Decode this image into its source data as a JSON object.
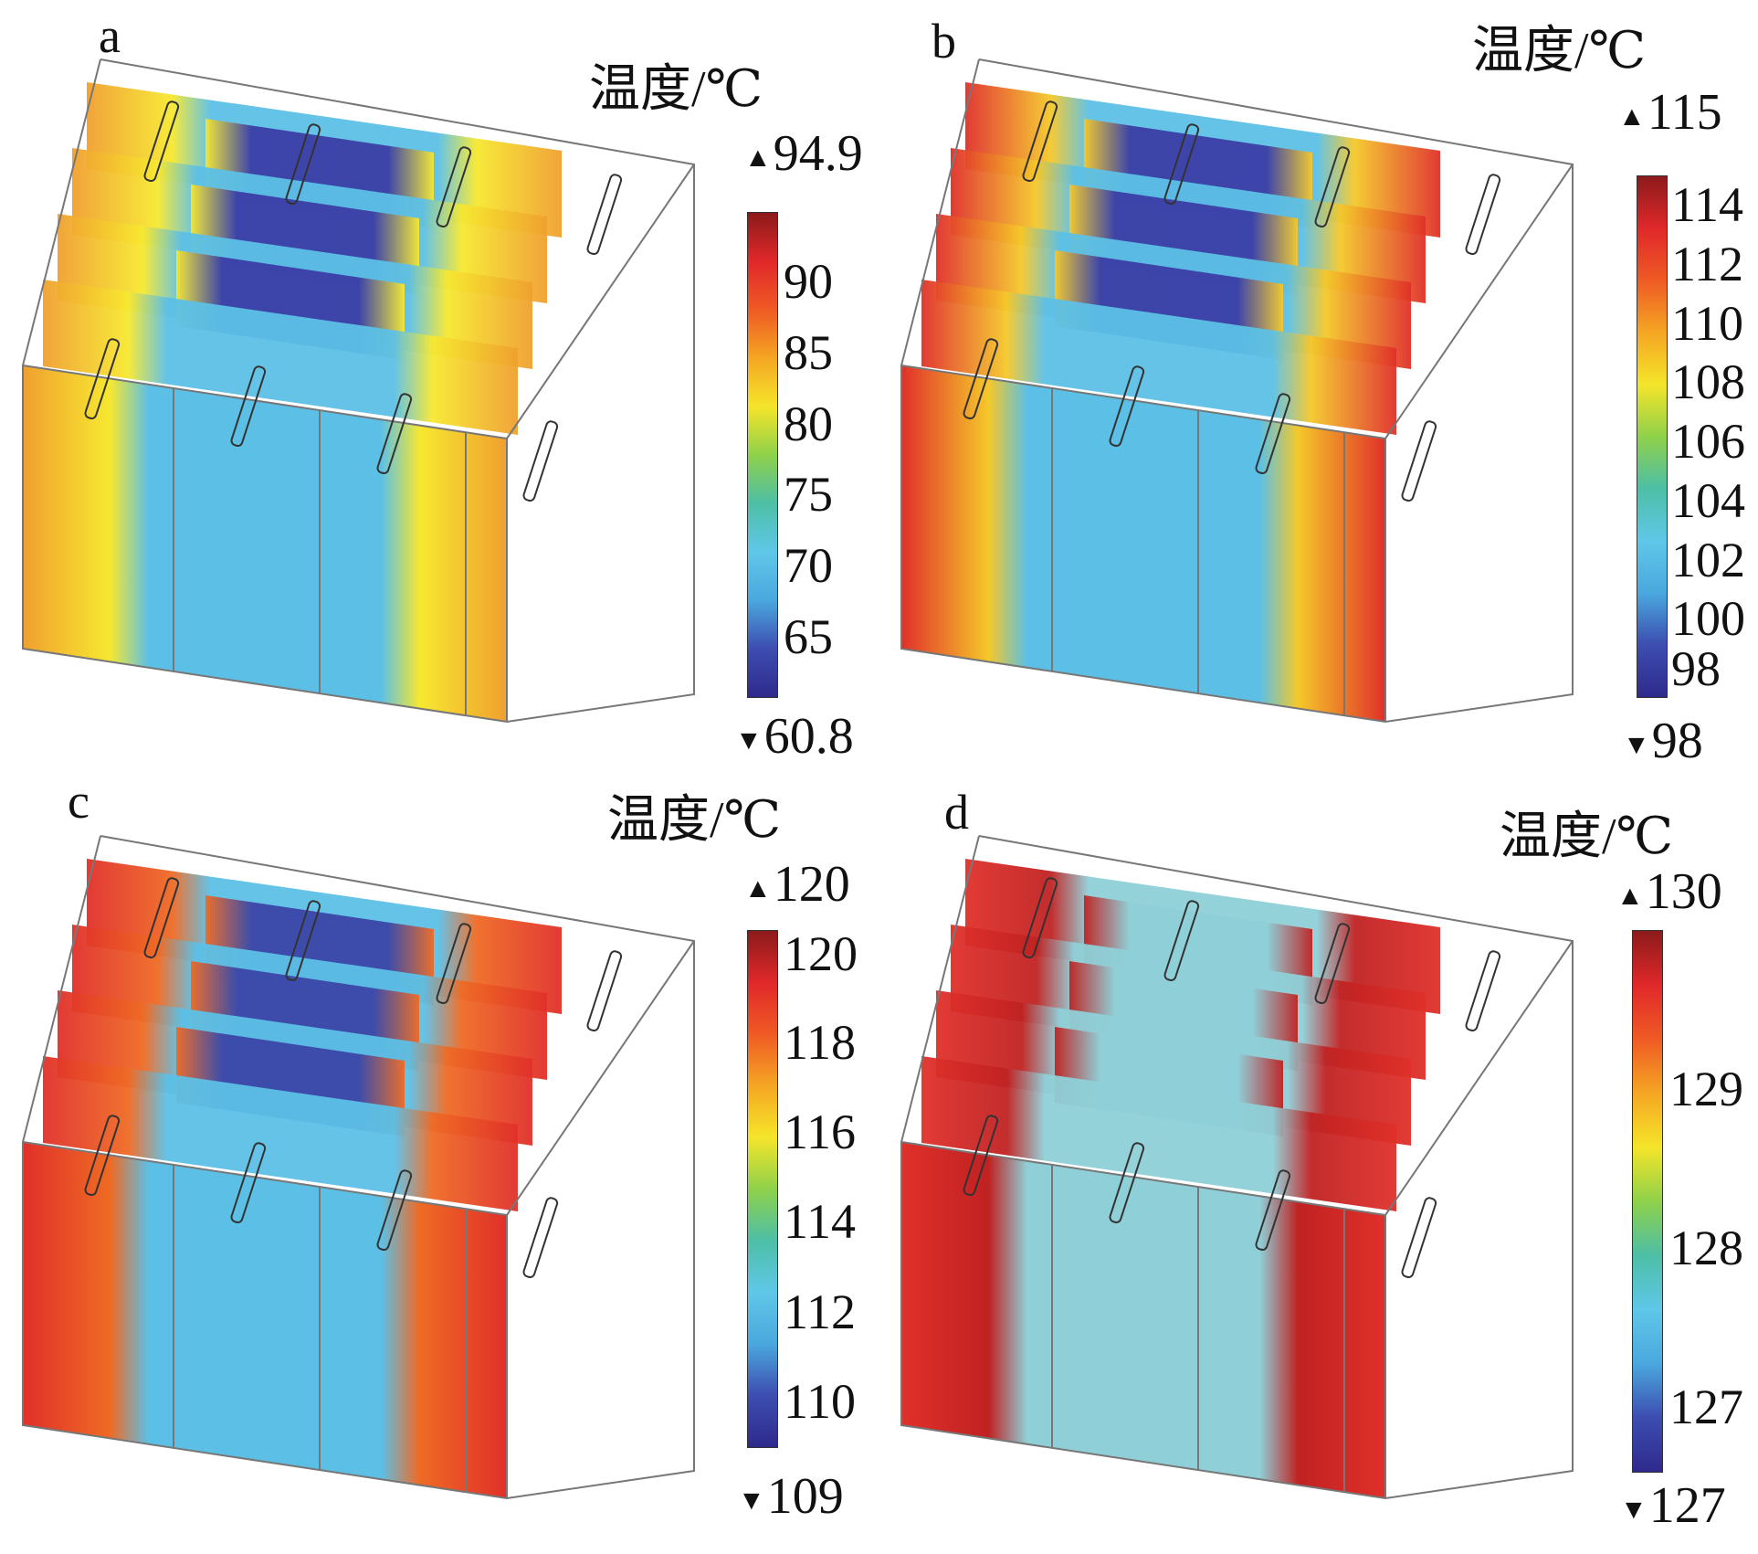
{
  "colormap": [
    "#2e2a8c",
    "#3d4db0",
    "#4aa8de",
    "#5fc7e8",
    "#4dbfa6",
    "#8fd14a",
    "#f5e52a",
    "#f5a623",
    "#ef5a24",
    "#e0282a",
    "#8c1a1a"
  ],
  "panels": [
    {
      "label": "a",
      "legend_title": "温度/℃",
      "max_label": "94.9",
      "min_label": "60.8",
      "ticks": [
        "90",
        "85",
        "80",
        "75",
        "70",
        "65"
      ],
      "tick_values": [
        90,
        85,
        80,
        75,
        70,
        65
      ],
      "range": [
        60.8,
        94.9
      ],
      "edge_color": "#f0a030",
      "mid_color": "#f7e830",
      "center_color": "#5cc0e6",
      "core_color": "#3b3ea6"
    },
    {
      "label": "b",
      "legend_title": "温度/℃",
      "max_label": "115",
      "min_label": "98",
      "ticks": [
        "114",
        "112",
        "110",
        "108",
        "106",
        "104",
        "102",
        "100",
        "98"
      ],
      "tick_values": [
        114,
        112,
        110,
        108,
        106,
        104,
        102,
        100,
        98
      ],
      "range": [
        98,
        115
      ],
      "edge_color": "#e0302a",
      "mid_color": "#f5c82a",
      "center_color": "#5cc0e6",
      "core_color": "#3b3ea6"
    },
    {
      "label": "c",
      "legend_title": "温度/℃",
      "max_label": "120",
      "min_label": "109",
      "ticks": [
        "120",
        "118",
        "116",
        "114",
        "112",
        "110"
      ],
      "tick_values": [
        120,
        118,
        116,
        114,
        112,
        110
      ],
      "range": [
        109,
        120.5
      ],
      "edge_color": "#e0302a",
      "mid_color": "#ef6a24",
      "center_color": "#5cc0e6",
      "core_color": "#3b46a8"
    },
    {
      "label": "d",
      "legend_title": "温度/℃",
      "max_label": "130",
      "min_label": "127",
      "ticks": [
        "129",
        "128",
        "127"
      ],
      "tick_values": [
        129,
        128,
        127
      ],
      "range": [
        126.6,
        130
      ],
      "edge_color": "#e0302a",
      "mid_color": "#c02222",
      "center_color": "#8fd0d8",
      "core_color": "#8fd0d8"
    }
  ]
}
